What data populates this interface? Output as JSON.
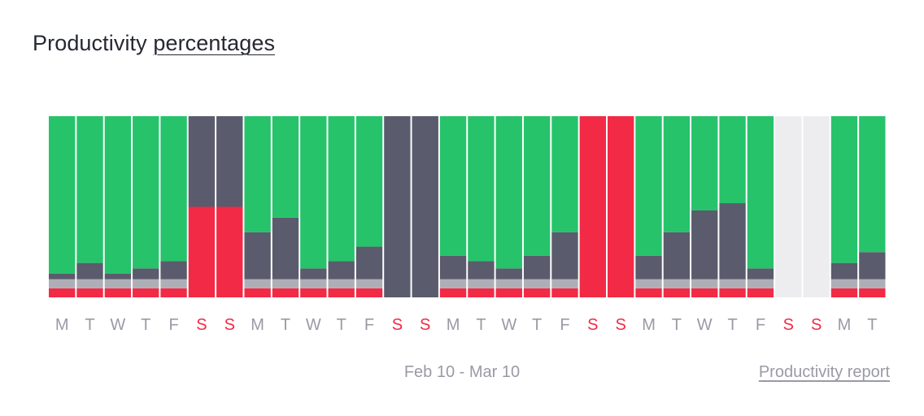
{
  "header": {
    "title_prefix": "Productivity",
    "title_link": "percentages"
  },
  "footer": {
    "date_range": "Feb 10 - Mar 10",
    "report_link": "Productivity report"
  },
  "colors": {
    "productive": "#26c36b",
    "neutral": "#5a5b6c",
    "light_neutral": "#aeafb6",
    "unproductive": "#f22a45",
    "no_data": "#ededf0",
    "weekday_label": "#9a9aa6",
    "weekend_label": "#f22a45"
  },
  "chart_data": {
    "type": "bar",
    "stacked": true,
    "unit": "percent",
    "ylim": [
      0,
      100
    ],
    "legend": "none",
    "grid": false,
    "categories": [
      "M",
      "T",
      "W",
      "T",
      "F",
      "S",
      "S",
      "M",
      "T",
      "W",
      "T",
      "F",
      "S",
      "S",
      "M",
      "T",
      "W",
      "T",
      "F",
      "S",
      "S",
      "M",
      "T",
      "W",
      "T",
      "F",
      "S",
      "S",
      "M",
      "T"
    ],
    "weekend": [
      false,
      false,
      false,
      false,
      false,
      true,
      true,
      false,
      false,
      false,
      false,
      false,
      true,
      true,
      false,
      false,
      false,
      false,
      false,
      true,
      true,
      false,
      false,
      false,
      false,
      false,
      true,
      true,
      false,
      false
    ],
    "no_data": [
      false,
      false,
      false,
      false,
      false,
      false,
      false,
      false,
      false,
      false,
      false,
      false,
      false,
      false,
      false,
      false,
      false,
      false,
      false,
      false,
      false,
      false,
      false,
      false,
      false,
      false,
      true,
      true,
      false,
      false
    ],
    "series": [
      {
        "color_key": "unproductive",
        "values": [
          5,
          5,
          5,
          5,
          5,
          50,
          50,
          5,
          5,
          5,
          5,
          5,
          0,
          0,
          5,
          5,
          5,
          5,
          5,
          100,
          100,
          5,
          5,
          5,
          5,
          5,
          0,
          0,
          5,
          5
        ]
      },
      {
        "color_key": "light_neutral",
        "values": [
          5,
          5,
          5,
          5,
          5,
          0,
          0,
          5,
          5,
          5,
          5,
          5,
          0,
          0,
          5,
          5,
          5,
          5,
          5,
          0,
          0,
          5,
          5,
          5,
          5,
          5,
          0,
          0,
          5,
          5
        ]
      },
      {
        "color_key": "neutral",
        "values": [
          3,
          9,
          3,
          6,
          10,
          50,
          50,
          26,
          34,
          6,
          10,
          18,
          100,
          100,
          13,
          10,
          6,
          13,
          26,
          0,
          0,
          13,
          26,
          38,
          42,
          6,
          0,
          0,
          9,
          15
        ]
      },
      {
        "color_key": "productive",
        "values": [
          87,
          81,
          87,
          84,
          80,
          0,
          0,
          64,
          56,
          84,
          80,
          72,
          0,
          0,
          77,
          80,
          84,
          77,
          64,
          0,
          0,
          77,
          64,
          52,
          48,
          84,
          0,
          0,
          81,
          75
        ]
      }
    ]
  }
}
